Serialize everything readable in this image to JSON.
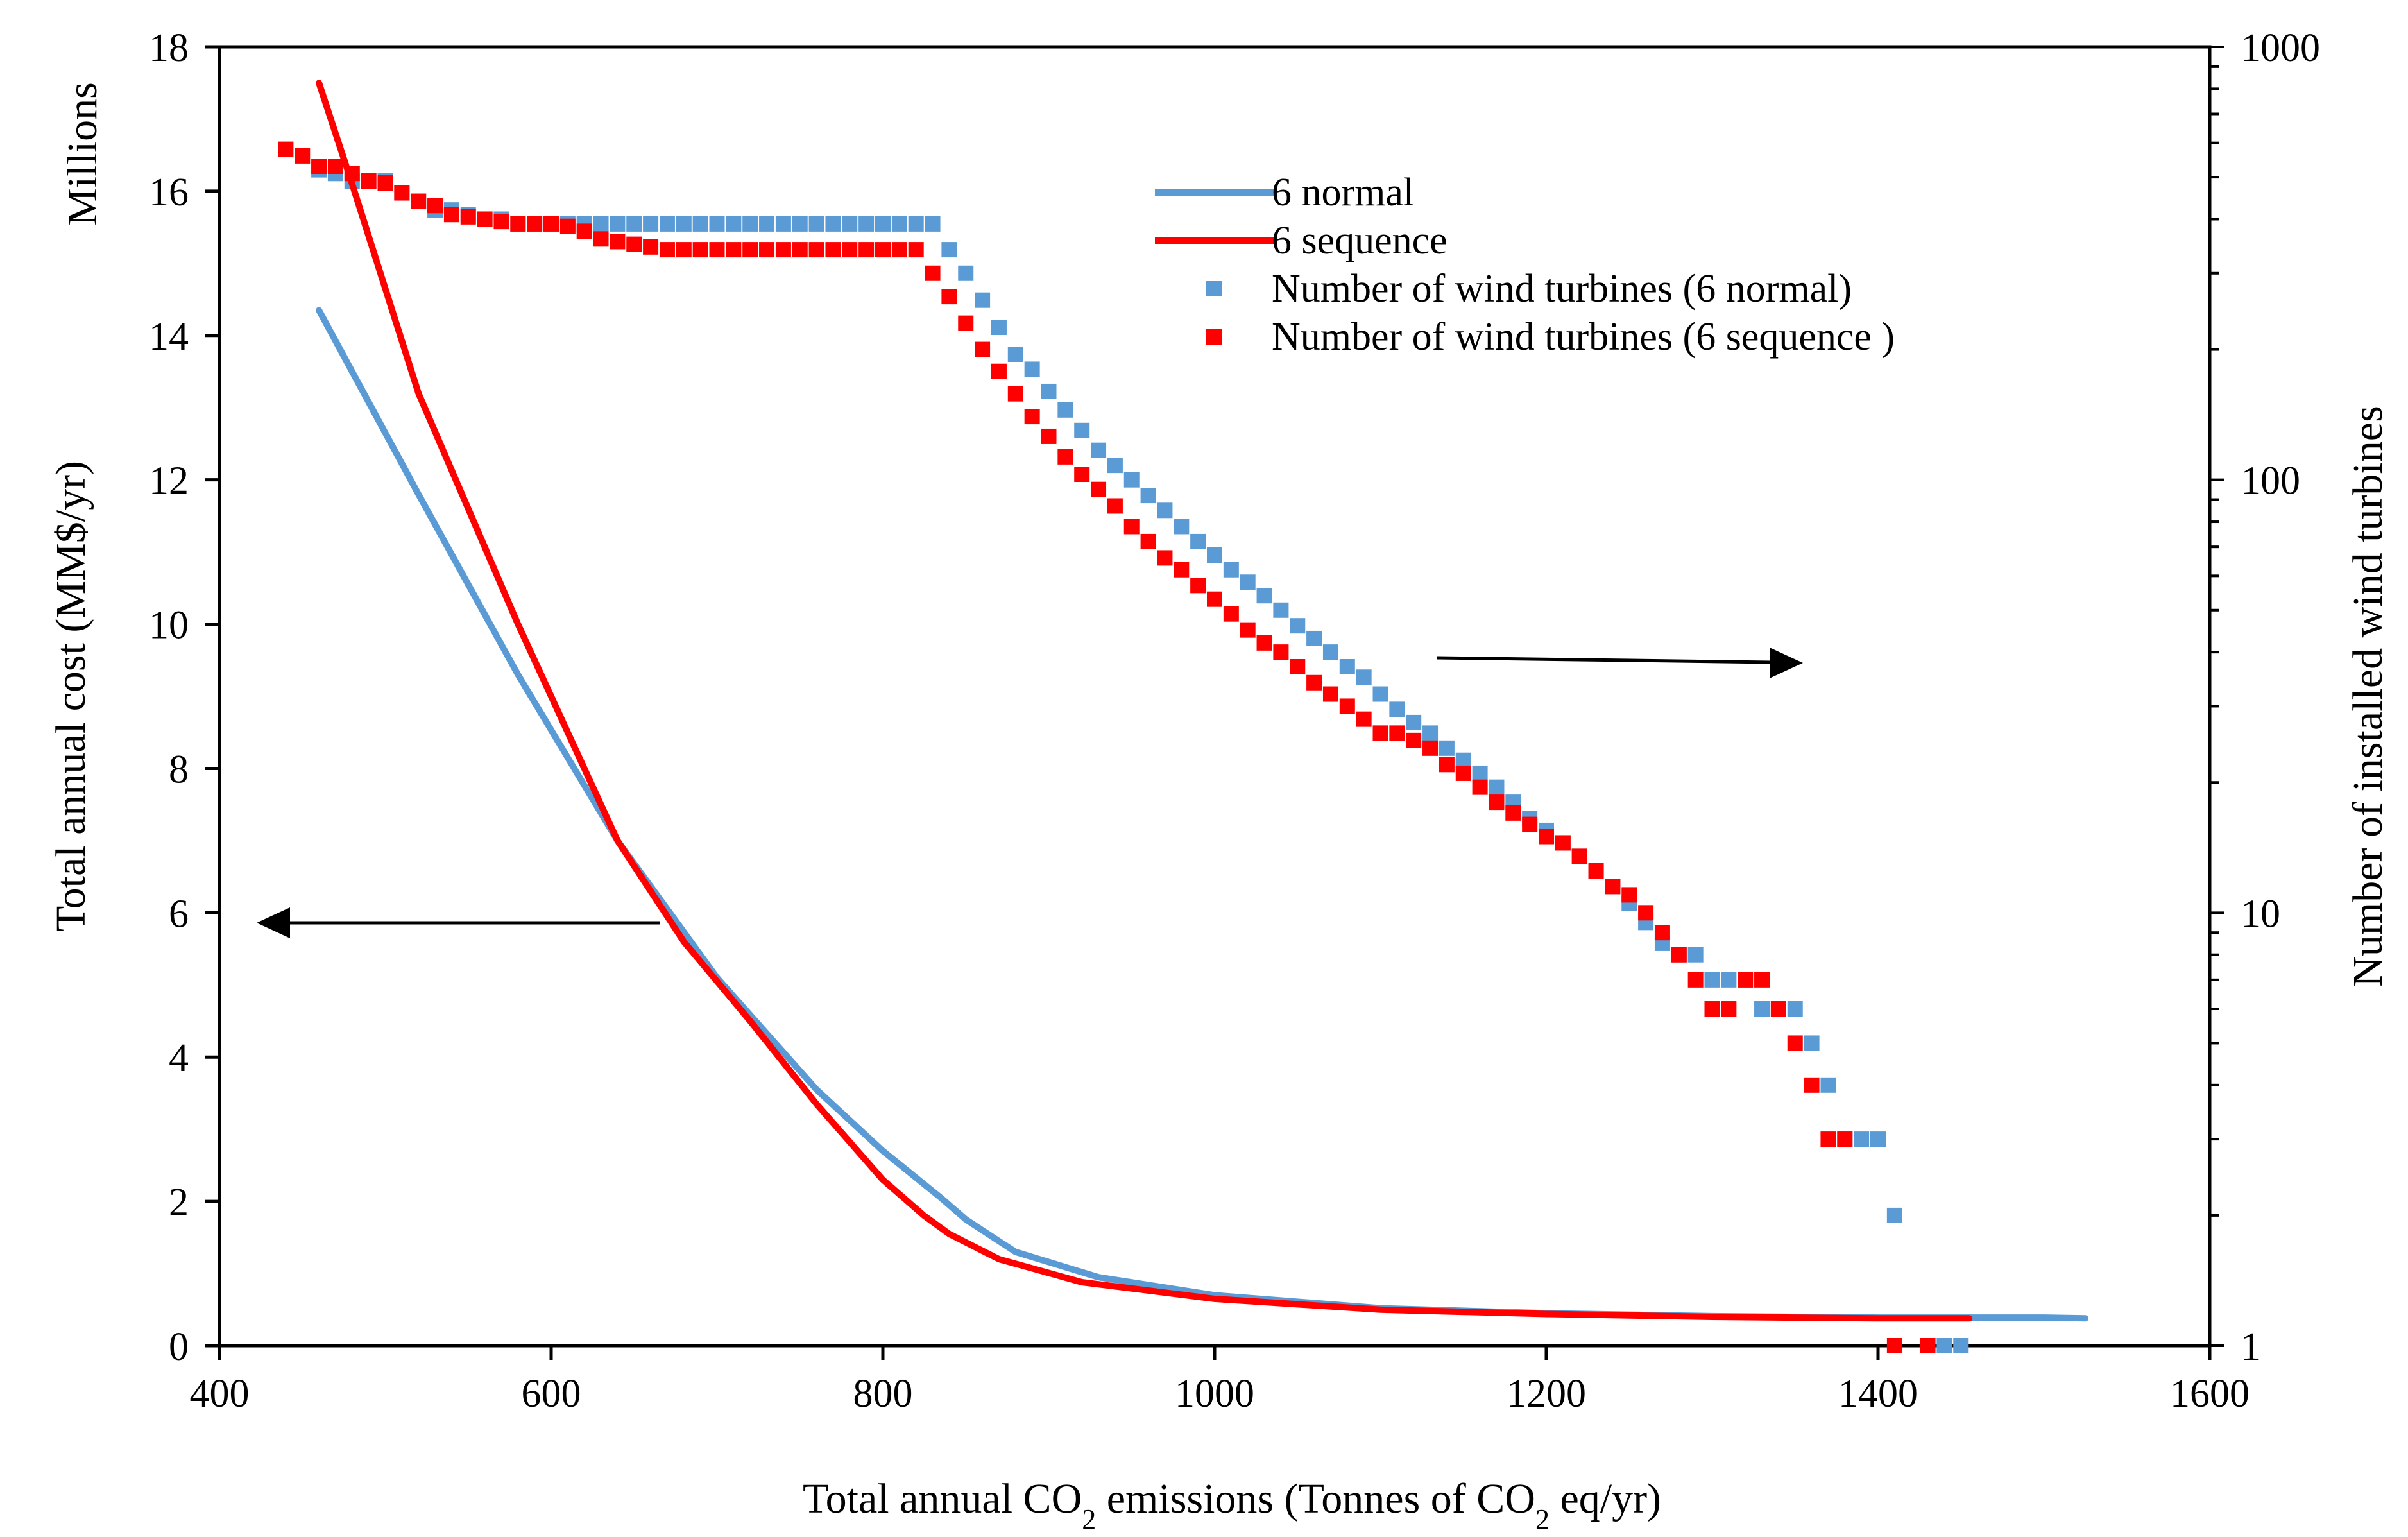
{
  "chart_data": {
    "type": "line",
    "xlabel": {
      "prefix": "Total annual CO",
      "sub1": "2",
      "middle": " emissions (Tonnes of CO",
      "sub2": "2",
      "suffix": " eq/yr)"
    },
    "ylabel_left": "Total annual cost (MM$/yr)",
    "ylabel_left_units": "Millions",
    "ylabel_right": "Number of installed wind turbines",
    "xlim": [
      400,
      1600
    ],
    "ylim_left": [
      0,
      18
    ],
    "ylim_right": [
      1,
      1000
    ],
    "right_axis_scale": "log",
    "x_ticks": [
      "400",
      "600",
      "800",
      "1000",
      "1200",
      "1400",
      "1600"
    ],
    "y_left_ticks": [
      "0",
      "2",
      "4",
      "6",
      "8",
      "10",
      "12",
      "14",
      "16",
      "18"
    ],
    "y_right_ticks": [
      "1",
      "10",
      "100",
      "1000"
    ],
    "grid": false,
    "legend_position": "top-center",
    "colors": {
      "normal": "#5B9BD5",
      "sequence": "#FF0000"
    },
    "annotations": [
      {
        "type": "arrow",
        "direction": "left",
        "meaning": "cost curves use left axis"
      },
      {
        "type": "arrow",
        "direction": "right",
        "meaning": "turbine counts use right axis"
      }
    ],
    "series": [
      {
        "name": "6 normal",
        "kind": "line",
        "axis": "left",
        "color": "#5B9BD5",
        "x": [
          460,
          520,
          580,
          640,
          700,
          760,
          800,
          835,
          850,
          880,
          930,
          1000,
          1100,
          1200,
          1300,
          1400,
          1500,
          1525
        ],
        "y": [
          14.35,
          11.8,
          9.3,
          7.0,
          5.1,
          3.55,
          2.7,
          2.05,
          1.75,
          1.3,
          0.95,
          0.7,
          0.52,
          0.45,
          0.41,
          0.39,
          0.39,
          0.38
        ]
      },
      {
        "name": "6 sequence",
        "kind": "line",
        "axis": "left",
        "color": "#FF0000",
        "x": [
          460,
          480,
          520,
          580,
          640,
          680,
          720,
          760,
          800,
          825,
          840,
          870,
          920,
          1000,
          1100,
          1200,
          1300,
          1400,
          1455
        ],
        "y": [
          17.5,
          16.1,
          13.2,
          10.0,
          7.0,
          5.6,
          4.5,
          3.35,
          2.3,
          1.8,
          1.55,
          1.2,
          0.88,
          0.65,
          0.5,
          0.44,
          0.4,
          0.38,
          0.38
        ]
      },
      {
        "name": "Number of wind turbines (6 normal)",
        "kind": "scatter",
        "axis": "right",
        "color": "#5B9BD5",
        "x": [
          460,
          470,
          480,
          490,
          500,
          510,
          520,
          530,
          540,
          550,
          560,
          570,
          580,
          590,
          600,
          610,
          620,
          630,
          640,
          650,
          660,
          670,
          680,
          690,
          700,
          710,
          720,
          730,
          740,
          750,
          760,
          770,
          780,
          790,
          800,
          810,
          820,
          830,
          840,
          850,
          860,
          870,
          880,
          890,
          900,
          910,
          920,
          930,
          940,
          950,
          960,
          970,
          980,
          990,
          1000,
          1010,
          1020,
          1030,
          1040,
          1050,
          1060,
          1070,
          1080,
          1090,
          1100,
          1110,
          1120,
          1130,
          1140,
          1150,
          1160,
          1170,
          1180,
          1190,
          1200,
          1210,
          1220,
          1230,
          1240,
          1250,
          1260,
          1270,
          1280,
          1290,
          1300,
          1310,
          1320,
          1330,
          1340,
          1350,
          1360,
          1370,
          1380,
          1390,
          1400,
          1410,
          1430,
          1440,
          1450
        ],
        "y": [
          520,
          510,
          490,
          490,
          490,
          460,
          440,
          420,
          420,
          410,
          400,
          400,
          390,
          390,
          390,
          390,
          390,
          390,
          390,
          390,
          390,
          390,
          390,
          390,
          390,
          390,
          390,
          390,
          390,
          390,
          390,
          390,
          390,
          390,
          390,
          390,
          390,
          390,
          340,
          300,
          260,
          225,
          195,
          180,
          160,
          145,
          130,
          117,
          108,
          100,
          92,
          85,
          78,
          72,
          67,
          62,
          58,
          54,
          50,
          46,
          43,
          40,
          37,
          35,
          32,
          29.5,
          27.5,
          26,
          24,
          22.5,
          21,
          19.5,
          18,
          16.5,
          15.5,
          14.5,
          13.5,
          12.5,
          11.5,
          10.5,
          9.5,
          8.5,
          8,
          8,
          7,
          7,
          7,
          6,
          6,
          6,
          5,
          4,
          3,
          3,
          3,
          2,
          1,
          1,
          1
        ]
      },
      {
        "name": "Number of wind turbines (6 sequence )",
        "kind": "scatter",
        "axis": "right",
        "color": "#FF0000",
        "x": [
          440,
          450,
          460,
          470,
          480,
          490,
          500,
          510,
          520,
          530,
          540,
          550,
          560,
          570,
          580,
          590,
          600,
          610,
          620,
          630,
          640,
          650,
          660,
          670,
          680,
          690,
          700,
          710,
          720,
          730,
          740,
          750,
          760,
          770,
          780,
          790,
          800,
          810,
          820,
          830,
          840,
          850,
          860,
          870,
          880,
          890,
          900,
          910,
          920,
          930,
          940,
          950,
          960,
          970,
          980,
          990,
          1000,
          1010,
          1020,
          1030,
          1040,
          1050,
          1060,
          1070,
          1080,
          1090,
          1100,
          1110,
          1120,
          1130,
          1140,
          1150,
          1160,
          1170,
          1180,
          1190,
          1200,
          1210,
          1220,
          1230,
          1240,
          1250,
          1260,
          1270,
          1280,
          1290,
          1300,
          1310,
          1320,
          1330,
          1340,
          1350,
          1360,
          1370,
          1380,
          1410,
          1430
        ],
        "y": [
          580,
          560,
          530,
          530,
          510,
          490,
          485,
          460,
          440,
          430,
          410,
          405,
          400,
          395,
          390,
          390,
          390,
          385,
          375,
          360,
          355,
          350,
          345,
          340,
          340,
          340,
          340,
          340,
          340,
          340,
          340,
          340,
          340,
          340,
          340,
          340,
          340,
          340,
          340,
          300,
          265,
          230,
          200,
          178,
          158,
          140,
          126,
          113,
          103,
          95,
          87,
          78,
          72,
          66,
          62,
          57,
          53,
          49,
          45,
          42,
          40,
          37,
          34,
          32,
          30,
          28,
          26,
          26,
          25,
          24,
          22,
          21,
          19.5,
          18,
          17,
          16,
          15,
          14.5,
          13.5,
          12.5,
          11.5,
          11,
          10,
          9,
          8,
          7,
          6,
          6,
          7,
          7,
          6,
          5,
          4,
          3,
          3,
          1,
          1
        ]
      }
    ]
  }
}
